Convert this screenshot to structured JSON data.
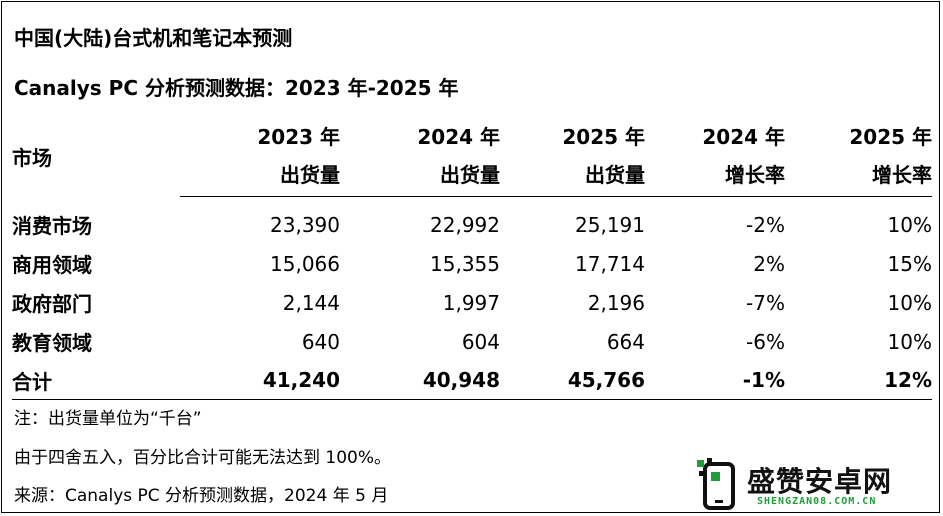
{
  "title": "中国(大陆)台式机和笔记本预测",
  "subtitle": "Canalys PC 分析预测数据：2023 年-2025 年",
  "chart_data": {
    "type": "table",
    "header_market": "市场",
    "columns": [
      {
        "line1": "2023 年",
        "line2": "出货量"
      },
      {
        "line1": "2024 年",
        "line2": "出货量"
      },
      {
        "line1": "2025 年",
        "line2": "出货量"
      },
      {
        "line1": "2024 年",
        "line2": "增长率"
      },
      {
        "line1": "2025 年",
        "line2": "增长率"
      }
    ],
    "rows": [
      {
        "name": "消费市场",
        "values": [
          "23,390",
          "22,992",
          "25,191",
          "-2%",
          "10%"
        ]
      },
      {
        "name": "商用领域",
        "values": [
          "15,066",
          "15,355",
          "17,714",
          "2%",
          "15%"
        ]
      },
      {
        "name": "政府部门",
        "values": [
          "2,144",
          "1,997",
          "2,196",
          "-7%",
          "10%"
        ]
      },
      {
        "name": "教育领域",
        "values": [
          "640",
          "604",
          "664",
          "-6%",
          "10%"
        ]
      }
    ],
    "total": {
      "name": "合计",
      "values": [
        "41,240",
        "40,948",
        "45,766",
        "-1%",
        "12%"
      ]
    }
  },
  "notes": [
    "注：出货量单位为“千台”",
    "由于四舍五入，百分比合计可能无法达到 100%。",
    "来源：Canalys PC 分析预测数据，2024 年 5 月"
  ],
  "watermark": {
    "name": "盛赞安卓网",
    "url": "SHENGZAN08.COM.CN",
    "logo_color": "#1f9d3a"
  }
}
